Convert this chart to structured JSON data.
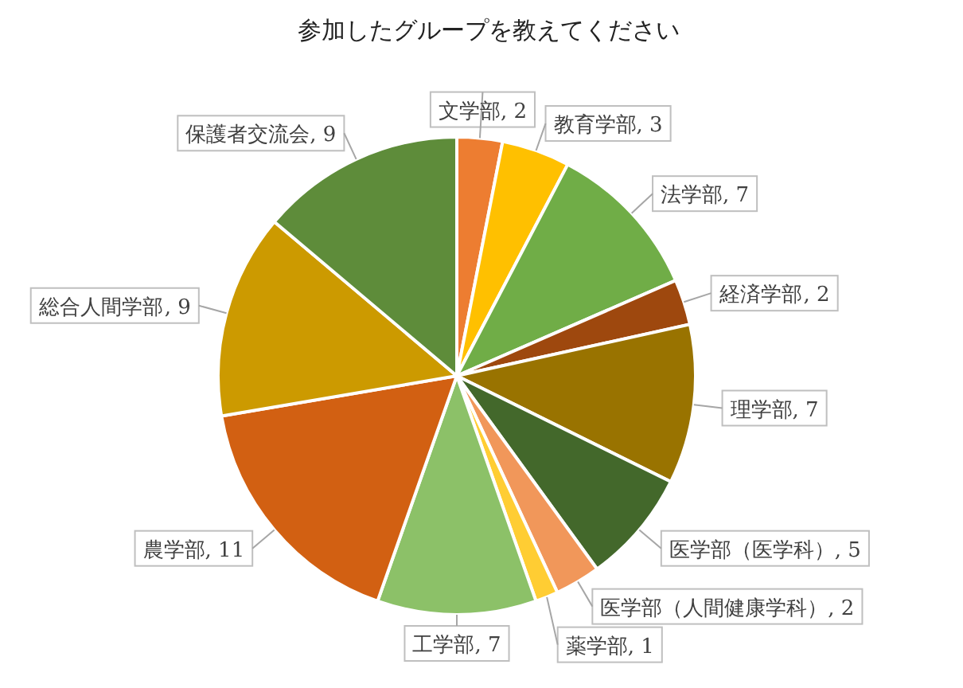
{
  "chart_data": {
    "type": "pie",
    "title": "参加したグループを教えてください",
    "categories": [
      "文学部",
      "教育学部",
      "法学部",
      "経済学部",
      "理学部",
      "医学部（医学科）",
      "医学部（人間健康学科）",
      "薬学部",
      "工学部",
      "農学部",
      "総合人間学部",
      "保護者交流会"
    ],
    "values": [
      2,
      3,
      7,
      2,
      7,
      5,
      2,
      1,
      7,
      11,
      9,
      9
    ],
    "colors": [
      "#ed7d31",
      "#ffc000",
      "#70ad47",
      "#9e480e",
      "#997300",
      "#43682b",
      "#f1975a",
      "#ffcd33",
      "#8cc168",
      "#d26012",
      "#cc9a00",
      "#5e8c3a"
    ],
    "value_labels": [
      ", 2",
      ", 3",
      ", 7",
      ", 2",
      ", 7",
      ", 5",
      ", 2",
      ", 1",
      ", 7",
      ", 11",
      ", 9",
      ", 9"
    ]
  }
}
